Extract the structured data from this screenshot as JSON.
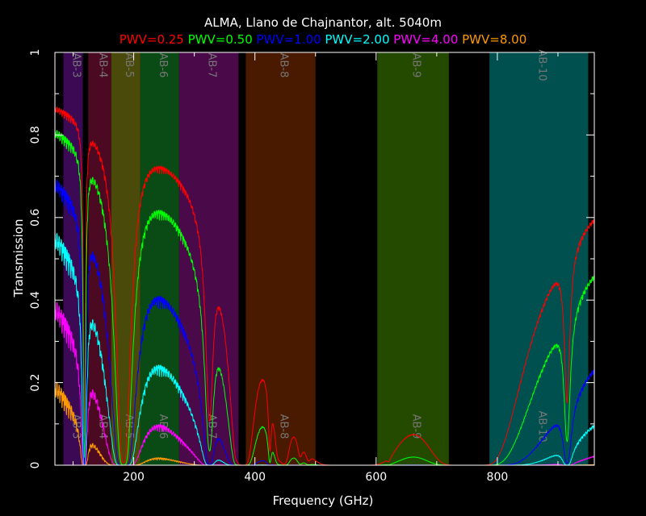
{
  "chart_data": {
    "type": "line",
    "title": "ALMA, Llano de Chajnantor, alt. 5040m",
    "xlabel": "Frequency (GHz)",
    "ylabel": "Transmission",
    "xlim": [
      70,
      960
    ],
    "ylim": [
      0,
      1
    ],
    "x_ticks": [
      200,
      400,
      600,
      800
    ],
    "x_tick_labels": [
      "200",
      "400",
      "600",
      "800"
    ],
    "y_ticks": [
      0,
      0.2,
      0.4,
      0.6,
      0.8,
      1
    ],
    "y_tick_labels": [
      "0",
      "0.2",
      "0.4",
      "0.6",
      "0.8",
      "1"
    ],
    "grid": false,
    "legend_position": "top",
    "bands": [
      {
        "label": "AB-3",
        "from": 84,
        "to": 116,
        "color": "#3c0a55"
      },
      {
        "label": "AB-4",
        "from": 125,
        "to": 163,
        "color": "#4c0a22"
      },
      {
        "label": "AB-5",
        "from": 163,
        "to": 211,
        "color": "#4a4a0a"
      },
      {
        "label": "AB-6",
        "from": 211,
        "to": 275,
        "color": "#0a4a14"
      },
      {
        "label": "AB-7",
        "from": 275,
        "to": 373,
        "color": "#4a0a4a"
      },
      {
        "label": "AB-8",
        "from": 385,
        "to": 500,
        "color": "#4a1a00"
      },
      {
        "label": "AB-9",
        "from": 602,
        "to": 720,
        "color": "#244a00"
      },
      {
        "label": "AB-10",
        "from": 787,
        "to": 950,
        "color": "#005050"
      }
    ],
    "series": [
      {
        "name": "PWV=0.25",
        "color": "#ff0000",
        "scale": 1.0
      },
      {
        "name": "PWV=0.50",
        "color": "#00ff00",
        "scale": 1.0
      },
      {
        "name": "PWV=1.00",
        "color": "#0000ff",
        "scale": 1.0
      },
      {
        "name": "PWV=2.00",
        "color": "#00ffff",
        "scale": 1.0
      },
      {
        "name": "PWV=4.00",
        "color": "#ff00ff",
        "scale": 1.0
      },
      {
        "name": "PWV=8.00",
        "color": "#ff9900",
        "scale": 1.0
      }
    ],
    "series_params": [
      {
        "tau0": 0.03,
        "tau1": 0.41
      },
      {
        "tau0": 0.04,
        "tau1": 0.62
      },
      {
        "tau0": 0.045,
        "tau1": 1.19
      },
      {
        "tau0": 0.055,
        "tau1": 1.91
      },
      {
        "tau0": 0.07,
        "tau1": 3.15
      },
      {
        "tau0": 0.1,
        "tau1": 5.5
      }
    ],
    "absorption_lines": [
      {
        "f": 118.75,
        "w": 1.2,
        "s": 6
      },
      {
        "f": 183.31,
        "w": 6,
        "s": 12
      },
      {
        "f": 325.15,
        "w": 5,
        "s": 4
      },
      {
        "f": 368.5,
        "w": 4,
        "s": 2.5
      },
      {
        "f": 380.2,
        "w": 8,
        "s": 20
      },
      {
        "f": 424.8,
        "w": 2,
        "s": 4
      },
      {
        "f": 439.15,
        "w": 5,
        "s": 4
      },
      {
        "f": 448.0,
        "w": 6,
        "s": 10
      },
      {
        "f": 474.7,
        "w": 4,
        "s": 3
      },
      {
        "f": 488.5,
        "w": 4,
        "s": 3
      },
      {
        "f": 556.9,
        "w": 25,
        "s": 60
      },
      {
        "f": 620.7,
        "w": 3,
        "s": 2
      },
      {
        "f": 752.0,
        "w": 20,
        "s": 60
      },
      {
        "f": 915.0,
        "w": 4,
        "s": 3
      }
    ]
  }
}
